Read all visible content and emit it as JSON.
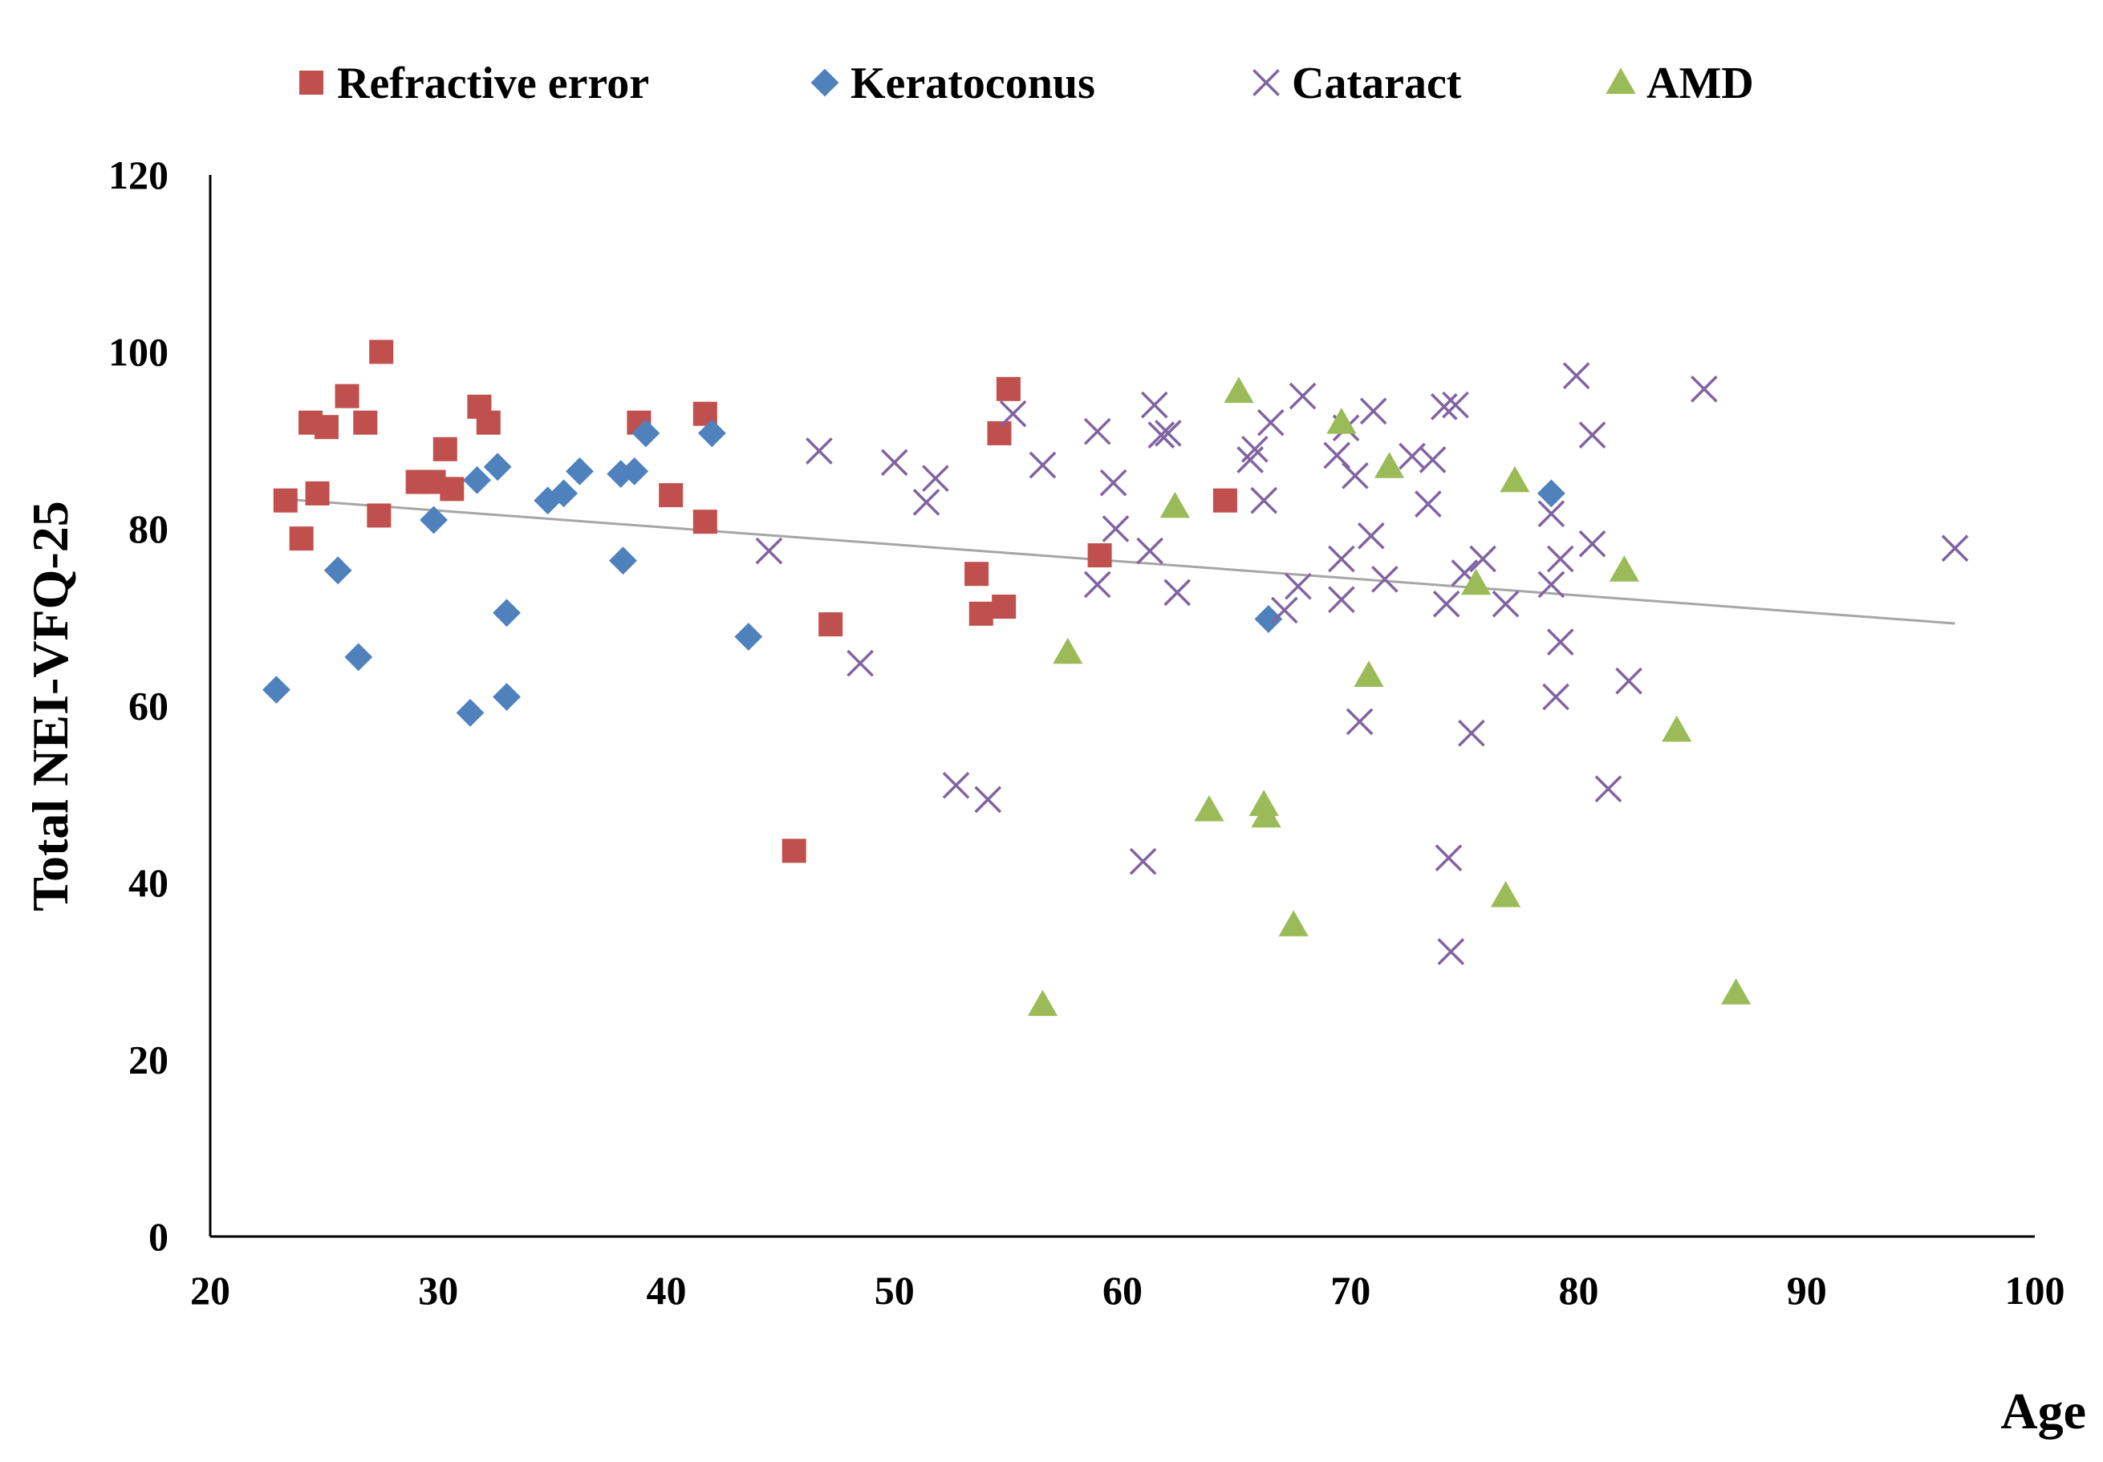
{
  "chart_data": {
    "type": "scatter",
    "title": "",
    "xlabel": "Age",
    "ylabel": "Total NEI-VFQ-25",
    "xlim": [
      20,
      100
    ],
    "ylim": [
      0,
      120
    ],
    "xticks": [
      20,
      30,
      40,
      50,
      60,
      70,
      80,
      90,
      100
    ],
    "yticks": [
      0,
      20,
      40,
      60,
      80,
      100,
      120
    ],
    "grid": false,
    "legend_position": "top",
    "trendline": {
      "x": [
        23,
        96.5
      ],
      "y": [
        83.4,
        69.3
      ],
      "color": "#a6a6a6"
    },
    "series": [
      {
        "name": "Refractive error",
        "marker": "square",
        "color": "#c0504d",
        "points": [
          [
            23.3,
            83.2
          ],
          [
            24,
            78.9
          ],
          [
            24.4,
            92
          ],
          [
            24.7,
            84
          ],
          [
            25.1,
            91.5
          ],
          [
            26,
            95
          ],
          [
            26.8,
            92
          ],
          [
            27.4,
            81.5
          ],
          [
            27.5,
            100
          ],
          [
            29.1,
            85.3
          ],
          [
            29.8,
            85.3
          ],
          [
            30.3,
            89
          ],
          [
            30.6,
            84.5
          ],
          [
            31.8,
            93.8
          ],
          [
            32.2,
            92
          ],
          [
            38.8,
            92
          ],
          [
            40.2,
            83.8
          ],
          [
            41.7,
            93
          ],
          [
            41.7,
            80.8
          ],
          [
            45.6,
            43.6
          ],
          [
            47.2,
            69.2
          ],
          [
            53.6,
            74.9
          ],
          [
            53.8,
            70.4
          ],
          [
            54.6,
            90.8
          ],
          [
            54.8,
            71.2
          ],
          [
            55,
            95.8
          ],
          [
            59,
            77
          ],
          [
            64.5,
            83.2
          ]
        ]
      },
      {
        "name": "Keratoconus",
        "marker": "diamond",
        "color": "#4f81bd",
        "points": [
          [
            22.9,
            61.8
          ],
          [
            25.6,
            75.3
          ],
          [
            26.5,
            65.5
          ],
          [
            29.8,
            81
          ],
          [
            31.4,
            59.2
          ],
          [
            31.7,
            85.5
          ],
          [
            32.6,
            87
          ],
          [
            33,
            70.5
          ],
          [
            33,
            61
          ],
          [
            34.8,
            83.2
          ],
          [
            35.5,
            84
          ],
          [
            36.2,
            86.5
          ],
          [
            38,
            86.2
          ],
          [
            38.1,
            76.4
          ],
          [
            38.6,
            86.5
          ],
          [
            39.1,
            90.8
          ],
          [
            42,
            90.8
          ],
          [
            43.6,
            67.8
          ],
          [
            66.4,
            69.8
          ],
          [
            78.8,
            84
          ]
        ]
      },
      {
        "name": "Cataract",
        "marker": "x",
        "color": "#8064a2",
        "points": [
          [
            44.5,
            77.5
          ],
          [
            46.7,
            88.8
          ],
          [
            48.5,
            64.8
          ],
          [
            50,
            87.5
          ],
          [
            51.4,
            83
          ],
          [
            51.8,
            85.7
          ],
          [
            52.7,
            51
          ],
          [
            54.1,
            49.4
          ],
          [
            55.2,
            93
          ],
          [
            56.5,
            87.2
          ],
          [
            58.9,
            91
          ],
          [
            58.9,
            73.7
          ],
          [
            59.6,
            85.2
          ],
          [
            59.7,
            80
          ],
          [
            60.9,
            42.4
          ],
          [
            61.2,
            77.5
          ],
          [
            61.4,
            94
          ],
          [
            61.7,
            90.6
          ],
          [
            62,
            90.8
          ],
          [
            62.4,
            72.8
          ],
          [
            65.6,
            87.8
          ],
          [
            65.8,
            89
          ],
          [
            66.2,
            83.2
          ],
          [
            66.5,
            92
          ],
          [
            67.1,
            70.8
          ],
          [
            67.7,
            73.5
          ],
          [
            67.9,
            95
          ],
          [
            69.4,
            88.3
          ],
          [
            69.6,
            72
          ],
          [
            69.6,
            76.6
          ],
          [
            69.8,
            91.4
          ],
          [
            70.2,
            86
          ],
          [
            70.4,
            58.2
          ],
          [
            70.9,
            79.2
          ],
          [
            71,
            93.3
          ],
          [
            71.5,
            74.3
          ],
          [
            72.7,
            88.2
          ],
          [
            73.4,
            82.8
          ],
          [
            73.6,
            87.8
          ],
          [
            74.1,
            93.8
          ],
          [
            74.2,
            71.5
          ],
          [
            74.3,
            42.8
          ],
          [
            74.4,
            32.2
          ],
          [
            74.6,
            94
          ],
          [
            75,
            75
          ],
          [
            75.3,
            56.9
          ],
          [
            75.8,
            76.6
          ],
          [
            76.8,
            71.5
          ],
          [
            78.8,
            81.7
          ],
          [
            78.8,
            73.7
          ],
          [
            79,
            61
          ],
          [
            79.2,
            67.2
          ],
          [
            79.2,
            76.6
          ],
          [
            79.9,
            97.3
          ],
          [
            80.6,
            90.6
          ],
          [
            80.6,
            78.3
          ],
          [
            81.3,
            50.6
          ],
          [
            82.2,
            62.8
          ],
          [
            85.5,
            95.8
          ],
          [
            96.5,
            77.8
          ]
        ]
      },
      {
        "name": "AMD",
        "marker": "triangle",
        "color": "#9bbb59",
        "points": [
          [
            56.5,
            26.2
          ],
          [
            57.6,
            66
          ],
          [
            62.3,
            82.5
          ],
          [
            63.8,
            48.2
          ],
          [
            65.1,
            95.5
          ],
          [
            66.2,
            48.8
          ],
          [
            66.3,
            47.5
          ],
          [
            67.5,
            35.2
          ],
          [
            69.6,
            92
          ],
          [
            70.8,
            63.4
          ],
          [
            71.7,
            87
          ],
          [
            75.5,
            73.8
          ],
          [
            77.2,
            85.4
          ],
          [
            76.8,
            38.5
          ],
          [
            82,
            75.3
          ],
          [
            84.3,
            57.2
          ],
          [
            86.9,
            27.5
          ]
        ]
      }
    ]
  }
}
